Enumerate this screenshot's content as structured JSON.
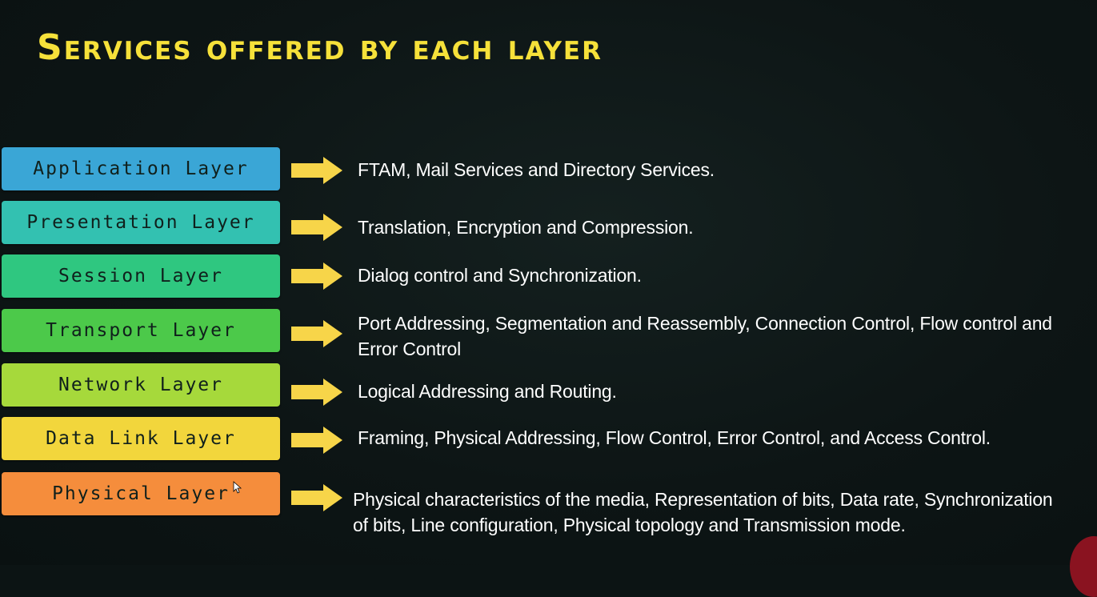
{
  "title": "Services offered by each layer",
  "colors": {
    "title": "#f6e13a",
    "arrow": "#f7d549",
    "description_text": "#ffffff",
    "layer_text": "#10201c"
  },
  "layers": [
    {
      "name": "Application Layer",
      "color": "#3aa6d6",
      "description": "FTAM, Mail Services and Directory Services."
    },
    {
      "name": "Presentation Layer",
      "color": "#33c1b1",
      "description": "Translation, Encryption and Compression."
    },
    {
      "name": "Session Layer",
      "color": "#2fc780",
      "description": "Dialog control and Synchronization."
    },
    {
      "name": "Transport Layer",
      "color": "#4cc94a",
      "description": "Port Addressing, Segmentation and Reassembly, Connection Control, Flow control and Error Control"
    },
    {
      "name": "Network Layer",
      "color": "#a6d93b",
      "description": "Logical Addressing and Routing."
    },
    {
      "name": "Data Link Layer",
      "color": "#f2d63c",
      "description": "Framing, Physical Addressing, Flow Control, Error Control, and Access Control."
    },
    {
      "name": "Physical Layer",
      "color": "#f58d3c",
      "description": "Physical characteristics of the media, Representation of bits, Data rate, Synchronization of bits, Line configuration, Physical topology and Transmission mode."
    }
  ]
}
